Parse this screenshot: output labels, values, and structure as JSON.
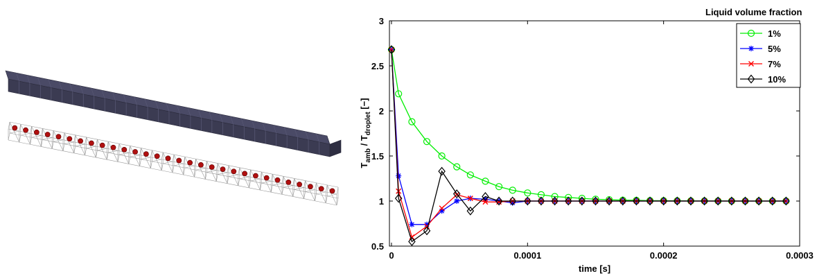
{
  "illustration": {
    "bar_color": "#3b3b52",
    "particle_color": "#b01010",
    "cell_count": 30
  },
  "chart_data": {
    "type": "line",
    "xlabel": "time [s]",
    "ylabel_main": "T",
    "ylabel_sub1": "amb",
    "ylabel_mid": " / T",
    "ylabel_sub2": "droplet",
    "ylabel_tail": " [−]",
    "xlim": [
      -1.5e-06,
      0.0003
    ],
    "ylim": [
      0.5,
      3
    ],
    "xticks": [
      0,
      0.0001,
      0.0002,
      0.0003
    ],
    "xtick_labels": [
      "0",
      "0.0001",
      "0.0002",
      "0.0003"
    ],
    "yticks": [
      0.5,
      1,
      1.5,
      2,
      2.5,
      3
    ],
    "ytick_labels": [
      "0.5",
      "1",
      "1.5",
      "2",
      "2.5",
      "3"
    ],
    "grid": false,
    "legend": {
      "title": "Liquid volume fraction",
      "placement": "top-right"
    },
    "x": [
      0,
      5.2e-06,
      1.5e-05,
      2.6e-05,
      3.7e-05,
      4.8e-05,
      5.8e-05,
      6.9e-05,
      7.9e-05,
      8.9e-05,
      0.0001,
      0.00011,
      0.00012,
      0.00013,
      0.00014,
      0.00015,
      0.00016,
      0.00017,
      0.00018,
      0.00019,
      0.0002,
      0.00021,
      0.00022,
      0.00023,
      0.00024,
      0.00025,
      0.00026,
      0.00027,
      0.00028,
      0.00029
    ],
    "series": [
      {
        "name": "1%",
        "color": "#00ee00",
        "marker": "circle",
        "values": [
          2.68,
          2.19,
          1.88,
          1.66,
          1.5,
          1.38,
          1.29,
          1.22,
          1.16,
          1.12,
          1.09,
          1.07,
          1.05,
          1.04,
          1.03,
          1.02,
          1.015,
          1.01,
          1.008,
          1.005,
          1.004,
          1.003,
          1.002,
          1.001,
          1.001,
          1.0,
          1.0,
          1.0,
          1.0,
          1.0
        ]
      },
      {
        "name": "5%",
        "color": "#0000ff",
        "marker": "star",
        "values": [
          2.68,
          1.28,
          0.74,
          0.74,
          0.89,
          1.0,
          1.03,
          1.02,
          1.0,
          0.98,
          1.0,
          1.0,
          1.0,
          1.0,
          1.0,
          1.0,
          1.0,
          1.0,
          1.0,
          1.0,
          1.0,
          1.0,
          1.0,
          1.0,
          1.0,
          1.0,
          1.0,
          1.0,
          1.0,
          1.0
        ]
      },
      {
        "name": "7%",
        "color": "#ff0000",
        "marker": "x",
        "values": [
          2.68,
          1.11,
          0.6,
          0.72,
          0.92,
          1.07,
          1.03,
          0.99,
          0.99,
          1.0,
          1.0,
          1.0,
          1.0,
          1.0,
          1.0,
          1.0,
          1.0,
          1.0,
          1.0,
          1.0,
          1.0,
          1.0,
          1.0,
          1.0,
          1.0,
          1.0,
          1.0,
          1.0,
          1.0,
          1.0
        ]
      },
      {
        "name": "10%",
        "color": "#000000",
        "marker": "diamond",
        "values": [
          2.68,
          1.03,
          0.55,
          0.67,
          1.33,
          1.08,
          0.89,
          1.05,
          1.0,
          1.0,
          1.0,
          1.0,
          1.0,
          1.0,
          1.0,
          1.0,
          1.0,
          1.0,
          1.0,
          1.0,
          1.0,
          1.0,
          1.0,
          1.0,
          1.0,
          1.0,
          1.0,
          1.0,
          1.0,
          1.0
        ]
      }
    ]
  }
}
